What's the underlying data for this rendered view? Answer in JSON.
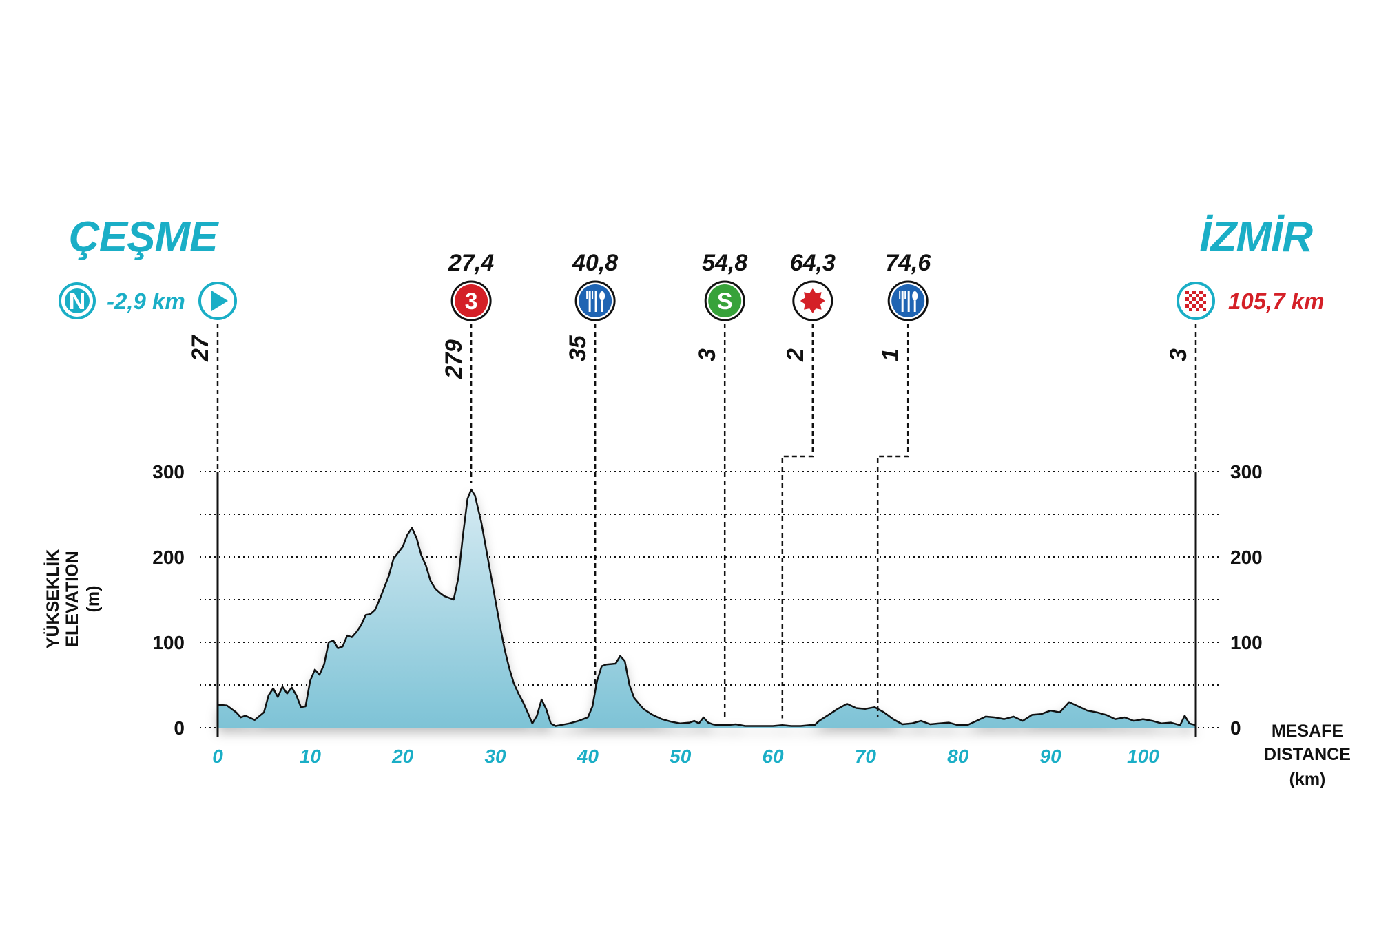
{
  "start": {
    "city": "ÇEŞME",
    "neutral_badge": "N",
    "neutral_km": "-2,9 km"
  },
  "finish": {
    "city": "İZMİR",
    "total_km": "105,7 km"
  },
  "colors": {
    "accent": "#1aaec6",
    "climb_red": "#d42027",
    "feed_blue": "#1f64b3",
    "sprint_green": "#37a23a",
    "profile_top": "#d7ebf3",
    "profile_bottom": "#7ec3d6"
  },
  "chart_data": {
    "type": "area",
    "ylabel_lines": [
      "YÜKSEKLİK",
      "ELEVATION",
      "(m)"
    ],
    "xlabel_lines": [
      "MESAFE",
      "DISTANCE",
      "(km)"
    ],
    "xlim": [
      0,
      105.7
    ],
    "ylim": [
      0,
      300
    ],
    "yticks": [
      0,
      100,
      200,
      300
    ],
    "xticks": [
      0,
      10,
      20,
      30,
      40,
      50,
      60,
      70,
      80,
      90,
      100
    ],
    "grid": "horizontal dotted every 50 m",
    "waypoints": [
      {
        "type": "start",
        "icon": "play-icon",
        "km": 0,
        "km_label": "",
        "elevation": "27"
      },
      {
        "type": "climb",
        "icon": "climb-cat-3-icon",
        "badge": "3",
        "km": 27.4,
        "km_label": "27,4",
        "elevation": "279"
      },
      {
        "type": "feed",
        "icon": "fork-knife-icon",
        "km": 40.8,
        "km_label": "40,8",
        "elevation": "35"
      },
      {
        "type": "sprint",
        "icon": "sprint-icon",
        "badge": "S",
        "km": 54.8,
        "km_label": "54,8",
        "elevation": "3"
      },
      {
        "type": "bonus",
        "icon": "bonus-star-icon",
        "km": 64.3,
        "km_label": "64,3",
        "elevation": "2"
      },
      {
        "type": "feed",
        "icon": "fork-knife-icon",
        "km": 74.6,
        "km_label": "74,6",
        "elevation": "1"
      },
      {
        "type": "finish",
        "icon": "finish-flag-icon",
        "km": 105.7,
        "km_label": "",
        "elevation": "3"
      }
    ],
    "profile": [
      [
        0,
        27
      ],
      [
        1,
        26
      ],
      [
        2,
        18
      ],
      [
        2.5,
        12
      ],
      [
        3,
        14
      ],
      [
        4,
        9
      ],
      [
        5,
        18
      ],
      [
        5.5,
        38
      ],
      [
        6,
        46
      ],
      [
        6.5,
        36
      ],
      [
        7,
        48
      ],
      [
        7.5,
        40
      ],
      [
        8,
        47
      ],
      [
        8.5,
        38
      ],
      [
        9,
        24
      ],
      [
        9.5,
        25
      ],
      [
        10,
        55
      ],
      [
        10.5,
        68
      ],
      [
        11,
        62
      ],
      [
        11.5,
        74
      ],
      [
        12,
        100
      ],
      [
        12.5,
        102
      ],
      [
        13,
        93
      ],
      [
        13.5,
        95
      ],
      [
        14,
        108
      ],
      [
        14.5,
        106
      ],
      [
        15,
        112
      ],
      [
        15.5,
        120
      ],
      [
        16,
        132
      ],
      [
        16.5,
        133
      ],
      [
        17,
        138
      ],
      [
        17.5,
        150
      ],
      [
        18,
        164
      ],
      [
        18.5,
        178
      ],
      [
        19,
        198
      ],
      [
        19.5,
        205
      ],
      [
        20,
        212
      ],
      [
        20.5,
        226
      ],
      [
        21,
        234
      ],
      [
        21.5,
        222
      ],
      [
        22,
        202
      ],
      [
        22.5,
        190
      ],
      [
        23,
        172
      ],
      [
        23.5,
        163
      ],
      [
        24,
        158
      ],
      [
        24.5,
        154
      ],
      [
        25,
        152
      ],
      [
        25.5,
        150
      ],
      [
        26,
        175
      ],
      [
        26.5,
        225
      ],
      [
        27,
        268
      ],
      [
        27.4,
        279
      ],
      [
        27.8,
        272
      ],
      [
        28.5,
        240
      ],
      [
        29,
        210
      ],
      [
        29.5,
        180
      ],
      [
        30,
        150
      ],
      [
        30.5,
        120
      ],
      [
        31,
        92
      ],
      [
        31.5,
        70
      ],
      [
        32,
        52
      ],
      [
        32.5,
        40
      ],
      [
        33,
        30
      ],
      [
        33.5,
        18
      ],
      [
        34,
        5
      ],
      [
        34.5,
        14
      ],
      [
        35,
        33
      ],
      [
        35.5,
        22
      ],
      [
        36,
        5
      ],
      [
        36.5,
        2
      ],
      [
        37,
        3
      ],
      [
        38,
        5
      ],
      [
        39,
        8
      ],
      [
        40,
        12
      ],
      [
        40.5,
        25
      ],
      [
        41,
        55
      ],
      [
        41.5,
        72
      ],
      [
        42,
        74
      ],
      [
        43,
        75
      ],
      [
        43.5,
        84
      ],
      [
        44,
        78
      ],
      [
        44.5,
        50
      ],
      [
        45,
        35
      ],
      [
        46,
        22
      ],
      [
        47,
        15
      ],
      [
        48,
        10
      ],
      [
        49,
        7
      ],
      [
        50,
        5
      ],
      [
        51,
        6
      ],
      [
        51.5,
        8
      ],
      [
        52,
        5
      ],
      [
        52.5,
        12
      ],
      [
        53,
        6
      ],
      [
        53.5,
        4
      ],
      [
        54,
        3
      ],
      [
        55,
        3
      ],
      [
        56,
        4
      ],
      [
        57,
        2
      ],
      [
        58,
        2
      ],
      [
        59,
        2
      ],
      [
        60,
        2
      ],
      [
        61,
        3
      ],
      [
        62,
        2
      ],
      [
        63,
        2
      ],
      [
        64,
        3
      ],
      [
        64.5,
        3
      ],
      [
        65,
        8
      ],
      [
        66,
        15
      ],
      [
        67,
        22
      ],
      [
        68,
        28
      ],
      [
        69,
        23
      ],
      [
        70,
        22
      ],
      [
        71,
        24
      ],
      [
        72,
        18
      ],
      [
        73,
        10
      ],
      [
        74,
        4
      ],
      [
        75,
        5
      ],
      [
        76,
        8
      ],
      [
        77,
        4
      ],
      [
        78,
        5
      ],
      [
        79,
        6
      ],
      [
        80,
        3
      ],
      [
        81,
        3
      ],
      [
        82,
        8
      ],
      [
        83,
        13
      ],
      [
        84,
        12
      ],
      [
        85,
        10
      ],
      [
        86,
        13
      ],
      [
        87,
        8
      ],
      [
        88,
        15
      ],
      [
        89,
        16
      ],
      [
        90,
        20
      ],
      [
        91,
        18
      ],
      [
        92,
        30
      ],
      [
        93,
        25
      ],
      [
        94,
        20
      ],
      [
        95,
        18
      ],
      [
        96,
        15
      ],
      [
        97,
        10
      ],
      [
        98,
        12
      ],
      [
        99,
        8
      ],
      [
        100,
        10
      ],
      [
        101,
        8
      ],
      [
        102,
        5
      ],
      [
        103,
        6
      ],
      [
        104,
        3
      ],
      [
        104.5,
        14
      ],
      [
        105,
        5
      ],
      [
        105.7,
        3
      ]
    ]
  }
}
